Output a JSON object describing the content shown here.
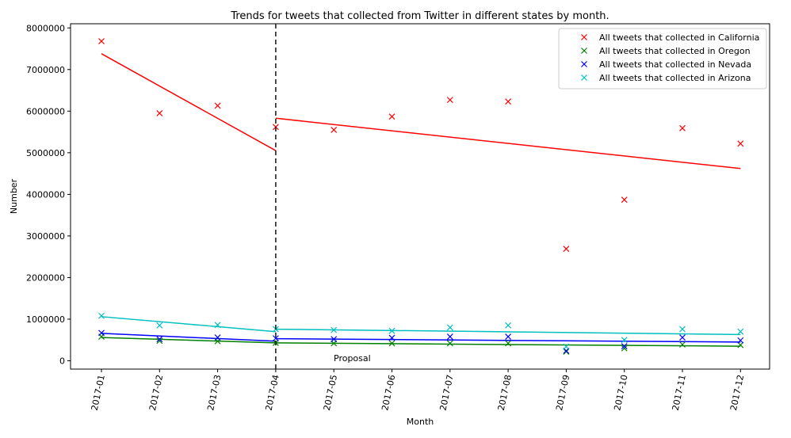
{
  "chart_data": {
    "type": "scatter",
    "title": "Trends for tweets that collected from Twitter in different states by month.",
    "xlabel": "Month",
    "ylabel": "Number",
    "categories": [
      "2017-01",
      "2017-02",
      "2017-03",
      "2017-04",
      "2017-05",
      "2017-06",
      "2017-07",
      "2017-08",
      "2017-09",
      "2017-10",
      "2017-11",
      "2017-12"
    ],
    "ylim": [
      -200000,
      8100000
    ],
    "yticks": [
      0,
      1000000,
      2000000,
      3000000,
      4000000,
      5000000,
      6000000,
      7000000,
      8000000
    ],
    "ytick_labels": [
      "0",
      "1000000",
      "2000000",
      "3000000",
      "4000000",
      "5000000",
      "6000000",
      "7000000",
      "8000000"
    ],
    "legend_position": "top-right",
    "grid": false,
    "series": [
      {
        "name": "All tweets that collected in California",
        "color": "#ff0000",
        "values": [
          7680000,
          5950000,
          6130000,
          5620000,
          5550000,
          5870000,
          6270000,
          6230000,
          2690000,
          3870000,
          5590000,
          5220000
        ],
        "trend_pre": [
          7380000,
          5050000
        ],
        "trend_post": [
          5830000,
          4620000
        ]
      },
      {
        "name": "All tweets that collected in Oregon",
        "color": "#008000",
        "values": [
          580000,
          480000,
          470000,
          430000,
          420000,
          420000,
          420000,
          420000,
          220000,
          300000,
          390000,
          380000
        ],
        "trend_pre": [
          560000,
          430000
        ],
        "trend_post": [
          430000,
          350000
        ]
      },
      {
        "name": "All tweets that collected in Nevada",
        "color": "#0000ff",
        "values": [
          670000,
          520000,
          560000,
          540000,
          520000,
          550000,
          580000,
          580000,
          240000,
          350000,
          560000,
          490000
        ],
        "trend_pre": [
          660000,
          470000
        ],
        "trend_post": [
          530000,
          450000
        ]
      },
      {
        "name": "All tweets that collected in Arizona",
        "color": "#00bfbf",
        "values": [
          1080000,
          850000,
          860000,
          760000,
          740000,
          720000,
          800000,
          850000,
          340000,
          500000,
          760000,
          700000
        ],
        "trend_pre": [
          1060000,
          700000
        ],
        "trend_post": [
          760000,
          630000
        ]
      }
    ],
    "breakpoint_category": "2017-04",
    "annotations": [
      {
        "text": "Proposal",
        "x": "2017-05",
        "y": 0
      }
    ]
  }
}
